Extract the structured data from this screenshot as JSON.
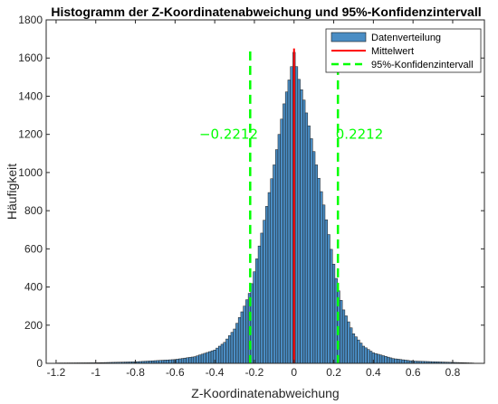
{
  "chart_data": {
    "type": "bar",
    "title": "Histogramm der Z-Koordinatenabweichung und 95%-Konfidenzintervall",
    "xlabel": "Z-Koordinatenabweichung",
    "ylabel": "Häufigkeit",
    "xlim": [
      -1.25,
      0.96
    ],
    "ylim": [
      0,
      1800
    ],
    "xticks": [
      "-1.2",
      "-1",
      "-0.8",
      "-0.6",
      "-0.4",
      "-0.2",
      "0",
      "0.2",
      "0.4",
      "0.6",
      "0.8"
    ],
    "yticks": [
      "0",
      "200",
      "400",
      "600",
      "800",
      "1000",
      "1200",
      "1400",
      "1600",
      "1800"
    ],
    "bin_width": 0.0125,
    "histogram_profile": {
      "x": [
        -1.2,
        -1.0,
        -0.8,
        -0.6,
        -0.5,
        -0.4,
        -0.35,
        -0.3,
        -0.25,
        -0.22,
        -0.2,
        -0.15,
        -0.1,
        -0.05,
        -0.02,
        0,
        0.02,
        0.05,
        0.1,
        0.15,
        0.2,
        0.22,
        0.25,
        0.3,
        0.35,
        0.4,
        0.5,
        0.6,
        0.8,
        0.9
      ],
      "y": [
        2,
        3,
        8,
        20,
        35,
        70,
        110,
        180,
        300,
        380,
        480,
        750,
        1040,
        1360,
        1510,
        1630,
        1510,
        1380,
        1110,
        830,
        520,
        400,
        280,
        155,
        90,
        55,
        25,
        12,
        5,
        2
      ]
    },
    "series": [
      {
        "name": "Datenverteilung",
        "type": "histogram",
        "color": "#4a8dc4",
        "edge_color": "#1a1a1a"
      },
      {
        "name": "Mittelwert",
        "type": "vline",
        "x": 0,
        "color": "#ff0000"
      },
      {
        "name": "95%-Konfidenzintervall",
        "type": "vline",
        "x": [
          -0.2212,
          0.2212
        ],
        "color": "#00ff00"
      }
    ],
    "annotations": [
      {
        "text": "−0.2212",
        "x": -0.33,
        "y": 1200,
        "color": "#00ff00"
      },
      {
        "text": "0.2212",
        "x": 0.33,
        "y": 1200,
        "color": "#00ff00"
      }
    ],
    "legend_position": "top-right",
    "grid": false
  }
}
